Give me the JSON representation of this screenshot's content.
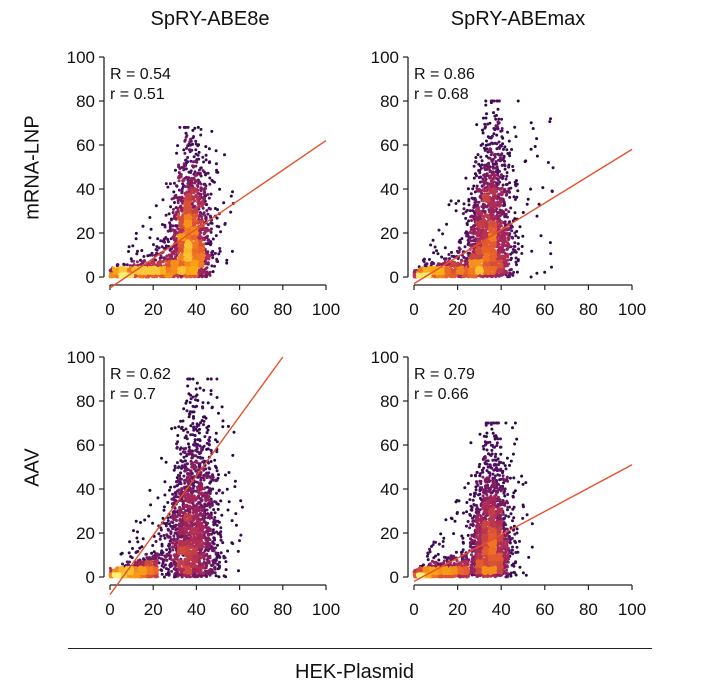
{
  "figure": {
    "column_titles": [
      "SpRY-ABE8e",
      "SpRY-ABEmax"
    ],
    "row_titles": [
      "mRNA-LNP",
      "AAV"
    ],
    "shared_xlabel": "HEK-Plasmid"
  },
  "chart_data": [
    {
      "type": "scatter",
      "density_colored": true,
      "colormap": "inferno",
      "column": "SpRY-ABE8e",
      "row": "mRNA-LNP",
      "xlabel": "HEK-Plasmid",
      "ylabel": "mRNA-LNP",
      "xlim": [
        0,
        100
      ],
      "ylim": [
        0,
        100
      ],
      "xticks": [
        0,
        20,
        40,
        60,
        80,
        100
      ],
      "yticks": [
        0,
        20,
        40,
        60,
        80,
        100
      ],
      "annotations": [
        "R = 0.54",
        "r = 0.51"
      ],
      "fit_line": {
        "x": [
          0,
          100
        ],
        "y": [
          -5,
          62
        ],
        "color": "#e8502a"
      },
      "cloud": {
        "x_center": 37,
        "x_spread": 4.5,
        "y_max": 68,
        "x_range": [
          0,
          58
        ],
        "baseline_to": 30
      }
    },
    {
      "type": "scatter",
      "density_colored": true,
      "colormap": "inferno",
      "column": "SpRY-ABEmax",
      "row": "mRNA-LNP",
      "xlabel": "HEK-Plasmid",
      "ylabel": "mRNA-LNP",
      "xlim": [
        0,
        100
      ],
      "ylim": [
        0,
        100
      ],
      "xticks": [
        0,
        20,
        40,
        60,
        80,
        100
      ],
      "yticks": [
        0,
        20,
        40,
        60,
        80,
        100
      ],
      "annotations": [
        "R = 0.86",
        "r = 0.68"
      ],
      "fit_line": {
        "x": [
          0,
          100
        ],
        "y": [
          -3,
          58
        ],
        "color": "#e8502a"
      },
      "cloud": {
        "x_center": 35,
        "x_spread": 5,
        "y_max": 80,
        "x_range": [
          0,
          64
        ],
        "baseline_to": 30
      }
    },
    {
      "type": "scatter",
      "density_colored": true,
      "colormap": "inferno",
      "column": "SpRY-ABE8e",
      "row": "AAV",
      "xlabel": "HEK-Plasmid",
      "ylabel": "AAV",
      "xlim": [
        0,
        100
      ],
      "ylim": [
        0,
        100
      ],
      "xticks": [
        0,
        20,
        40,
        60,
        80,
        100
      ],
      "yticks": [
        0,
        20,
        40,
        60,
        80,
        100
      ],
      "annotations": [
        "R = 0.62",
        "r = 0.7"
      ],
      "fit_line": {
        "x": [
          0,
          80
        ],
        "y": [
          -8,
          100
        ],
        "color": "#e8502a"
      },
      "cloud": {
        "x_center": 38,
        "x_spread": 6,
        "y_max": 90,
        "x_range": [
          0,
          62
        ],
        "baseline_to": 22
      }
    },
    {
      "type": "scatter",
      "density_colored": true,
      "colormap": "inferno",
      "column": "SpRY-ABEmax",
      "row": "AAV",
      "xlabel": "HEK-Plasmid",
      "ylabel": "AAV",
      "xlim": [
        0,
        100
      ],
      "ylim": [
        0,
        100
      ],
      "xticks": [
        0,
        20,
        40,
        60,
        80,
        100
      ],
      "yticks": [
        0,
        20,
        40,
        60,
        80,
        100
      ],
      "annotations": [
        "R = 0.79",
        "r = 0.66"
      ],
      "fit_line": {
        "x": [
          0,
          100
        ],
        "y": [
          -2,
          51
        ],
        "color": "#e8502a"
      },
      "cloud": {
        "x_center": 35,
        "x_spread": 4.5,
        "y_max": 70,
        "x_range": [
          0,
          55
        ],
        "baseline_to": 25
      }
    }
  ]
}
